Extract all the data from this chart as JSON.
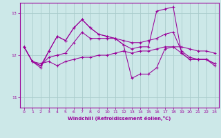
{
  "title": "",
  "xlabel": "Windchill (Refroidissement éolien,°C)",
  "bg_color": "#cce8e8",
  "line_color": "#990099",
  "grid_color": "#aacccc",
  "ylim": [
    10.75,
    13.25
  ],
  "xlim": [
    -0.5,
    23.5
  ],
  "yticks": [
    11,
    12,
    13
  ],
  "xticks": [
    0,
    1,
    2,
    3,
    4,
    5,
    6,
    7,
    8,
    9,
    10,
    11,
    12,
    13,
    14,
    15,
    16,
    17,
    18,
    19,
    20,
    21,
    22,
    23
  ],
  "series": [
    [
      12.2,
      11.85,
      11.8,
      11.85,
      11.75,
      11.85,
      11.9,
      11.95,
      11.95,
      12.0,
      12.0,
      12.05,
      12.1,
      12.05,
      12.1,
      12.1,
      12.15,
      12.2,
      12.2,
      12.2,
      12.15,
      12.1,
      12.1,
      12.05
    ],
    [
      12.2,
      11.85,
      11.75,
      11.95,
      12.0,
      12.05,
      12.3,
      12.55,
      12.4,
      12.4,
      12.4,
      12.4,
      12.35,
      12.3,
      12.3,
      12.35,
      12.4,
      12.5,
      12.55,
      12.1,
      11.95,
      11.9,
      11.9,
      11.8
    ],
    [
      12.2,
      11.85,
      11.75,
      12.1,
      12.45,
      12.35,
      12.65,
      12.85,
      12.65,
      12.5,
      12.45,
      12.4,
      12.25,
      12.15,
      12.2,
      12.2,
      13.05,
      13.1,
      13.15,
      12.05,
      11.9,
      11.9,
      11.9,
      11.8
    ],
    [
      12.2,
      11.85,
      11.7,
      12.1,
      12.45,
      12.35,
      12.65,
      12.85,
      12.65,
      12.5,
      12.45,
      12.4,
      12.25,
      11.45,
      11.55,
      11.55,
      11.7,
      12.15,
      12.2,
      12.05,
      11.9,
      11.9,
      11.9,
      11.75
    ]
  ]
}
